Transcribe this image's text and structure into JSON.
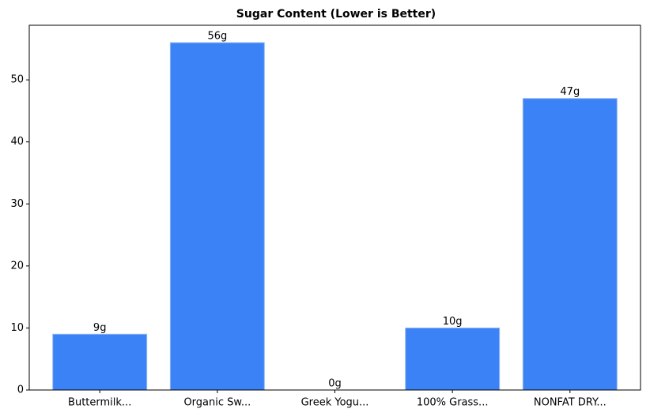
{
  "chart_data": {
    "type": "bar",
    "title": "Sugar Content (Lower is Better)",
    "categories": [
      "Buttermilk...",
      "Organic Sw...",
      "Greek Yogu...",
      "100% Grass...",
      "NONFAT DRY..."
    ],
    "values": [
      9,
      56,
      0,
      10,
      47
    ],
    "value_labels": [
      "9g",
      "56g",
      "0g",
      "10g",
      "47g"
    ],
    "color": "#3b82f6",
    "ylim": [
      0,
      58.8
    ],
    "yticks": [
      0,
      10,
      20,
      30,
      40,
      50
    ],
    "grid": false
  }
}
